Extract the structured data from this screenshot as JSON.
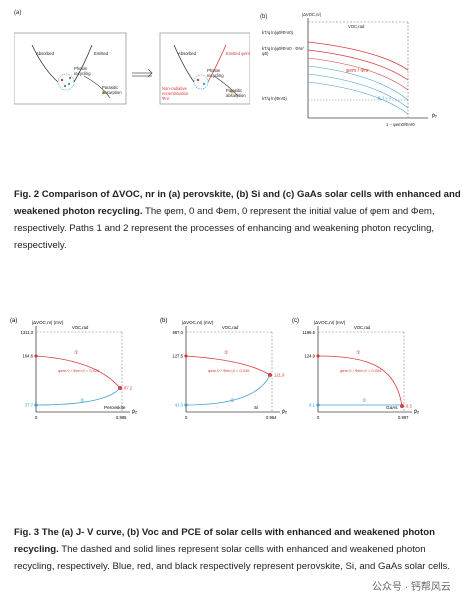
{
  "fig2": {
    "panel_a": {
      "label": "(a)",
      "left_box": {
        "absorbed": "Absorbed",
        "emitted": "Emitted",
        "photon_recycling": "Photon recycling",
        "parasitic": "Parasitic absorption"
      },
      "right_box": {
        "absorbed": "Absorbed",
        "emitted": "Emitted φem",
        "nonrad": "Non-radiative recombination Φnr",
        "photon_recycling": "Photon recycling",
        "parasitic": "Parasitic absorption"
      }
    },
    "panel_b": {
      "label": "(b)",
      "ylabel": "|ΔVOC,nr|",
      "top_label": "VOC,rad",
      "ytick1": "kT/q ln(φ0/Φnr0)",
      "ytick2": "kT/q ln(φ0/Φnr0 · Φnr/φ0)",
      "ytick3": "kT/q ln(Φnr0)",
      "xtick": "1 − φem0/Φnr0",
      "xlabel": "P̄r",
      "curve_label": "φem / Φnr",
      "g_label": "g_r = 1"
    },
    "caption_title": "Fig. 2 Comparison of ΔVOC, nr in (a) perovskite, (b) Si and (c) GaAs solar cells with enhanced and weakened photon recycling.",
    "caption_body": "The φem, 0 and Φem, 0 represent the initial value of φem and Φem, respectively. Paths 1 and 2 represent the processes of enhancing and weakening photon recycling, respectively."
  },
  "fig3": {
    "panels": [
      {
        "label": "(a)",
        "ylabel": "|ΔVOC,nr| (mV)",
        "top_label": "VOC,rad",
        "ytop": "1311.3",
        "ymid": "104.6",
        "ylow": "37.7",
        "xend": "0.985",
        "x0": "0",
        "point_red": "87.2",
        "ratio": "φem,0 / Φem,0 = 0.026",
        "name": "Perovskite",
        "xaxis": "P̄r"
      },
      {
        "label": "(b)",
        "ylabel": "|ΔVOC,nr| (mV)",
        "top_label": "VOC,rad",
        "ytop": "987.0",
        "ymid": "127.5",
        "ylow": "41.0",
        "xend": "0.964",
        "x0": "0",
        "point_red": "121.9",
        "ratio": "φem,0 / Φem,0 = 0.036",
        "name": "Si",
        "xaxis": "P̄r"
      },
      {
        "label": "(c)",
        "ylabel": "|ΔVOC,nr| (mV)",
        "top_label": "VOC,rad",
        "ytop": "1196.5",
        "ymid": "124.9",
        "ylow": "8.1",
        "xend": "0.997",
        "x0": "0",
        "point_red": "6.5",
        "ratio": "φem,0 / Φem,0 = 0.006",
        "name": "GaAs",
        "xaxis": "P̄r"
      }
    ],
    "path1": "①",
    "path2": "②",
    "caption_title": "Fig. 3 The (a) J- V curve, (b) Voc and PCE of solar cells with enhanced and weakened photon recycling.",
    "caption_body": "The dashed and solid lines represent solar cells with enhanced and weakened photon recycling, respectively. Blue, red, and black respectively represent perovskite, Si, and GaAs solar cells."
  },
  "watermark": "公众号 · 钙帮风云",
  "colors": {
    "red": "#d9383a",
    "blue": "#3f9bd5",
    "gray": "#888888"
  }
}
